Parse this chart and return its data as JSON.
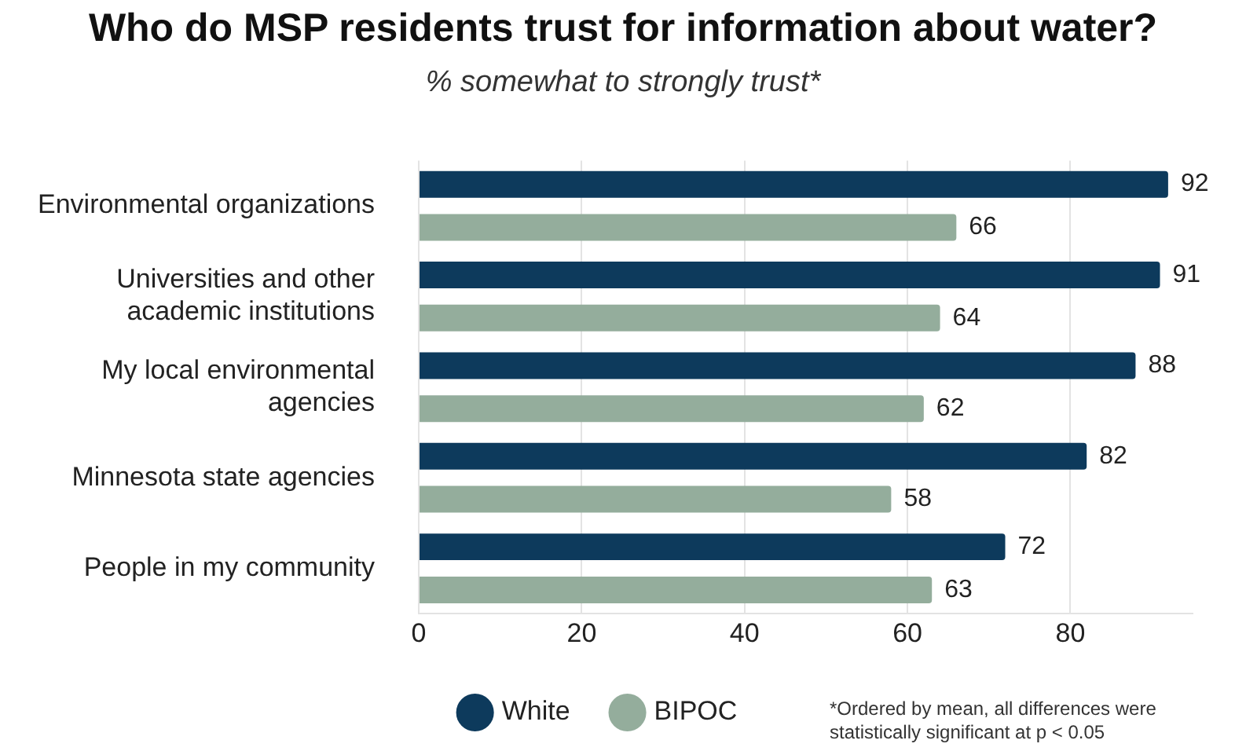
{
  "chart_data": {
    "type": "bar",
    "orientation": "horizontal",
    "title": "Who do MSP residents trust for information about water?",
    "subtitle": "% somewhat to strongly trust*",
    "categories": [
      "Environmental organizations",
      "Universities and other academic institutions",
      "My local environmental agencies",
      "Minnesota state agencies",
      "People in my community"
    ],
    "series": [
      {
        "name": "White",
        "color": "#0d3a5c",
        "values": [
          92,
          91,
          88,
          82,
          72
        ]
      },
      {
        "name": "BIPOC",
        "color": "#94ad9c",
        "values": [
          66,
          64,
          62,
          58,
          63
        ]
      }
    ],
    "xlim": [
      0,
      95
    ],
    "xticks": [
      0,
      20,
      40,
      60,
      80
    ],
    "grid": "x",
    "legend": "bottom",
    "data_labels": true,
    "annotations": [
      "*Ordered by mean, all differences were statistically significant at p < 0.05"
    ]
  }
}
